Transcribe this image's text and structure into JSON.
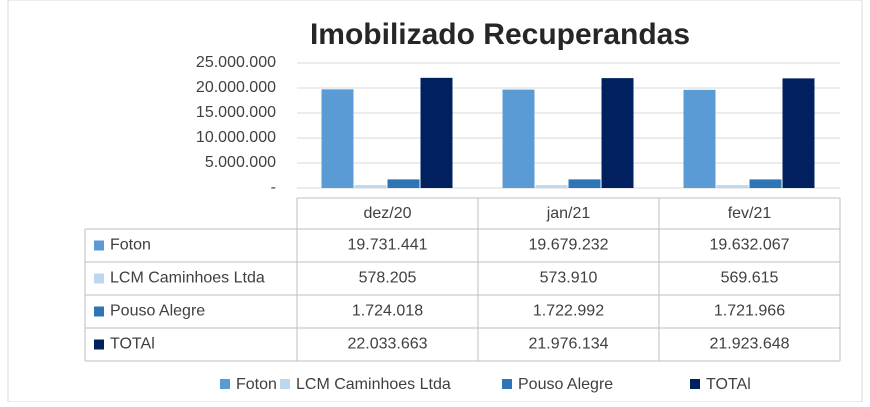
{
  "chart_data": {
    "type": "bar",
    "title": "Imobilizado Recuperandas",
    "categories": [
      "dez/20",
      "jan/21",
      "fev/21"
    ],
    "series": [
      {
        "name": "Foton",
        "color": "#5b9bd5",
        "values": [
          19731441,
          19679232,
          19632067
        ],
        "value_labels": [
          "19.731.441",
          "19.679.232",
          "19.632.067"
        ]
      },
      {
        "name": "LCM Caminhoes Ltda",
        "color": "#bdd7ee",
        "values": [
          578205,
          573910,
          569615
        ],
        "value_labels": [
          "578.205",
          "573.910",
          "569.615"
        ]
      },
      {
        "name": "Pouso Alegre",
        "color": "#2e75b6",
        "values": [
          1724018,
          1722992,
          1721966
        ],
        "value_labels": [
          "1.724.018",
          "1.722.992",
          "1.721.966"
        ]
      },
      {
        "name": "TOTAl",
        "color": "#002060",
        "values": [
          22033663,
          21976134,
          21923648
        ],
        "value_labels": [
          "22.033.663",
          "21.976.134",
          "21.923.648"
        ]
      }
    ],
    "ylim": [
      0,
      25000000
    ],
    "yticks": [
      {
        "value": 0,
        "label": "-"
      },
      {
        "value": 5000000,
        "label": "5.000.000"
      },
      {
        "value": 10000000,
        "label": "10.000.000"
      },
      {
        "value": 15000000,
        "label": "15.000.000"
      },
      {
        "value": 20000000,
        "label": "20.000.000"
      },
      {
        "value": 25000000,
        "label": "25.000.000"
      }
    ],
    "grid": true
  }
}
